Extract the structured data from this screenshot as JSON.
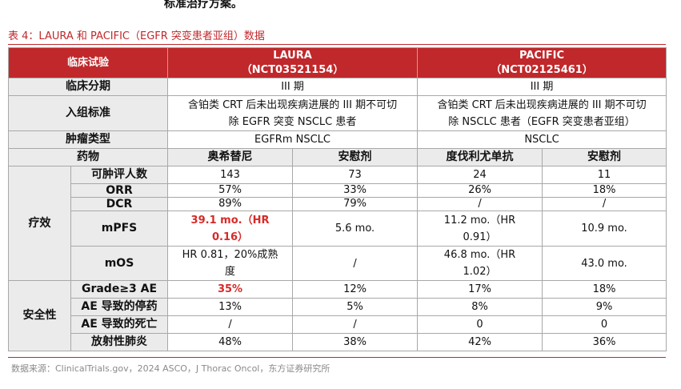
{
  "top_text": "标准治疗方案。",
  "caption": "表 4：LAURA 和 PACIFIC（EGFR 突变患者亚组）数据",
  "header": {
    "label": "临床试验",
    "laura_name": "LAURA",
    "laura_id": "（NCT03521154）",
    "pacific_name": "PACIFIC",
    "pacific_id": "（NCT02125461）"
  },
  "rows": {
    "phase": {
      "label": "临床分期",
      "laura": "III 期",
      "pacific": "III 期"
    },
    "criteria": {
      "label": "入组标准",
      "laura_l1": "含铂类 CRT 后未出现疾病进展的 III 期不可切",
      "laura_l2": "除 EGFR 突变 NSCLC 患者",
      "pacific_l1": "含铂类 CRT 后未出现疾病进展的 III 期不可切",
      "pacific_l2": "除 NSCLC 患者（EGFR 突变患者亚组）"
    },
    "tumor": {
      "label": "肿瘤类型",
      "laura": "EGFRm NSCLC",
      "pacific": "NSCLC"
    },
    "drug": {
      "label": "药物",
      "d1": "奥希替尼",
      "d2": "安慰剂",
      "d3": "度伐利尤单抗",
      "d4": "安慰剂"
    }
  },
  "efficacy": {
    "section": "疗效",
    "evaluable": {
      "label": "可肿评人数",
      "v1": "143",
      "v2": "73",
      "v3": "24",
      "v4": "11"
    },
    "orr": {
      "label": "ORR",
      "v1": "57%",
      "v2": "33%",
      "v3": "26%",
      "v4": "18%"
    },
    "dcr": {
      "label": "DCR",
      "v1": "89%",
      "v2": "79%",
      "v3": "/",
      "v4": "/"
    },
    "mpfs": {
      "label": "mPFS",
      "v1_l1": "39.1 mo.（HR",
      "v1_l2": "0.16）",
      "v2": "5.6 mo.",
      "v3_l1": "11.2 mo.（HR",
      "v3_l2": "0.91）",
      "v4": "10.9 mo."
    },
    "mos": {
      "label": "mOS",
      "v1_l1": "HR 0.81，20%成熟",
      "v1_l2": "度",
      "v2": "/",
      "v3_l1": "46.8 mo.（HR",
      "v3_l2": "1.02）",
      "v4": "43.0 mo."
    }
  },
  "safety": {
    "section": "安全性",
    "grade3": {
      "label": "Grade≥3 AE",
      "v1": "35%",
      "v2": "12%",
      "v3": "17%",
      "v4": "18%"
    },
    "ae_dc": {
      "label": "AE 导致的停药",
      "v1": "13%",
      "v2": "5%",
      "v3": "8%",
      "v4": "9%"
    },
    "ae_death": {
      "label": "AE 导致的死亡",
      "v1": "/",
      "v2": "/",
      "v3": "0",
      "v4": "0"
    },
    "pneumonitis": {
      "label": "放射性肺炎",
      "v1": "48%",
      "v2": "38%",
      "v3": "42%",
      "v4": "36%"
    }
  },
  "source": "数据来源：ClinicalTrials.gov，2024 ASCO，J Thorac Oncol，东方证券研究所",
  "colors": {
    "accent": "#c0282b",
    "label_bg": "#ebebeb",
    "highlight": "#d62a28"
  }
}
